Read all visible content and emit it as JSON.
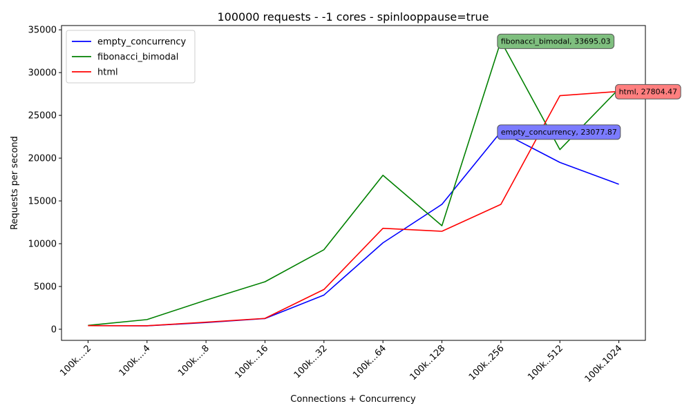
{
  "chart_data": {
    "type": "line",
    "title": "100000 requests - -1 cores - spinlooppause=true",
    "xlabel": "Connections + Concurrency",
    "ylabel": "Requests per second",
    "categories": [
      "100k....2",
      "100k....4",
      "100k....8",
      "100k...16",
      "100k...32",
      "100k...64",
      "100k..128",
      "100k..256",
      "100k..512",
      "100k.1024"
    ],
    "ylim": [
      -1300,
      35500
    ],
    "yticks": [
      0,
      5000,
      10000,
      15000,
      20000,
      25000,
      30000,
      35000
    ],
    "grid": false,
    "legend_position": "upper-left",
    "series": [
      {
        "name": "empty_concurrency",
        "color": "#0000ff",
        "values": [
          420,
          400,
          780,
          1250,
          4000,
          10100,
          14600,
          23077.87,
          19500,
          16950
        ]
      },
      {
        "name": "fibonacci_bimodal",
        "color": "#008000",
        "values": [
          450,
          1130,
          3400,
          5550,
          9300,
          18000,
          12100,
          33695.03,
          21000,
          28100
        ]
      },
      {
        "name": "html",
        "color": "#ff0000",
        "values": [
          420,
          410,
          820,
          1270,
          4650,
          11800,
          11450,
          14600,
          27300,
          27804.47
        ]
      }
    ],
    "annotations": [
      {
        "text": "empty_concurrency, 23077.87",
        "series": "empty_concurrency",
        "category": "100k..256",
        "value": 23077.87,
        "box_color": "#7b7bff"
      },
      {
        "text": "fibonacci_bimodal, 33695.03",
        "series": "fibonacci_bimodal",
        "category": "100k..256",
        "value": 33695.03,
        "box_color": "#7fbf7f"
      },
      {
        "text": "html, 27804.47",
        "series": "html",
        "category": "100k.1024",
        "value": 27804.47,
        "box_color": "#ff7f7f"
      }
    ]
  }
}
